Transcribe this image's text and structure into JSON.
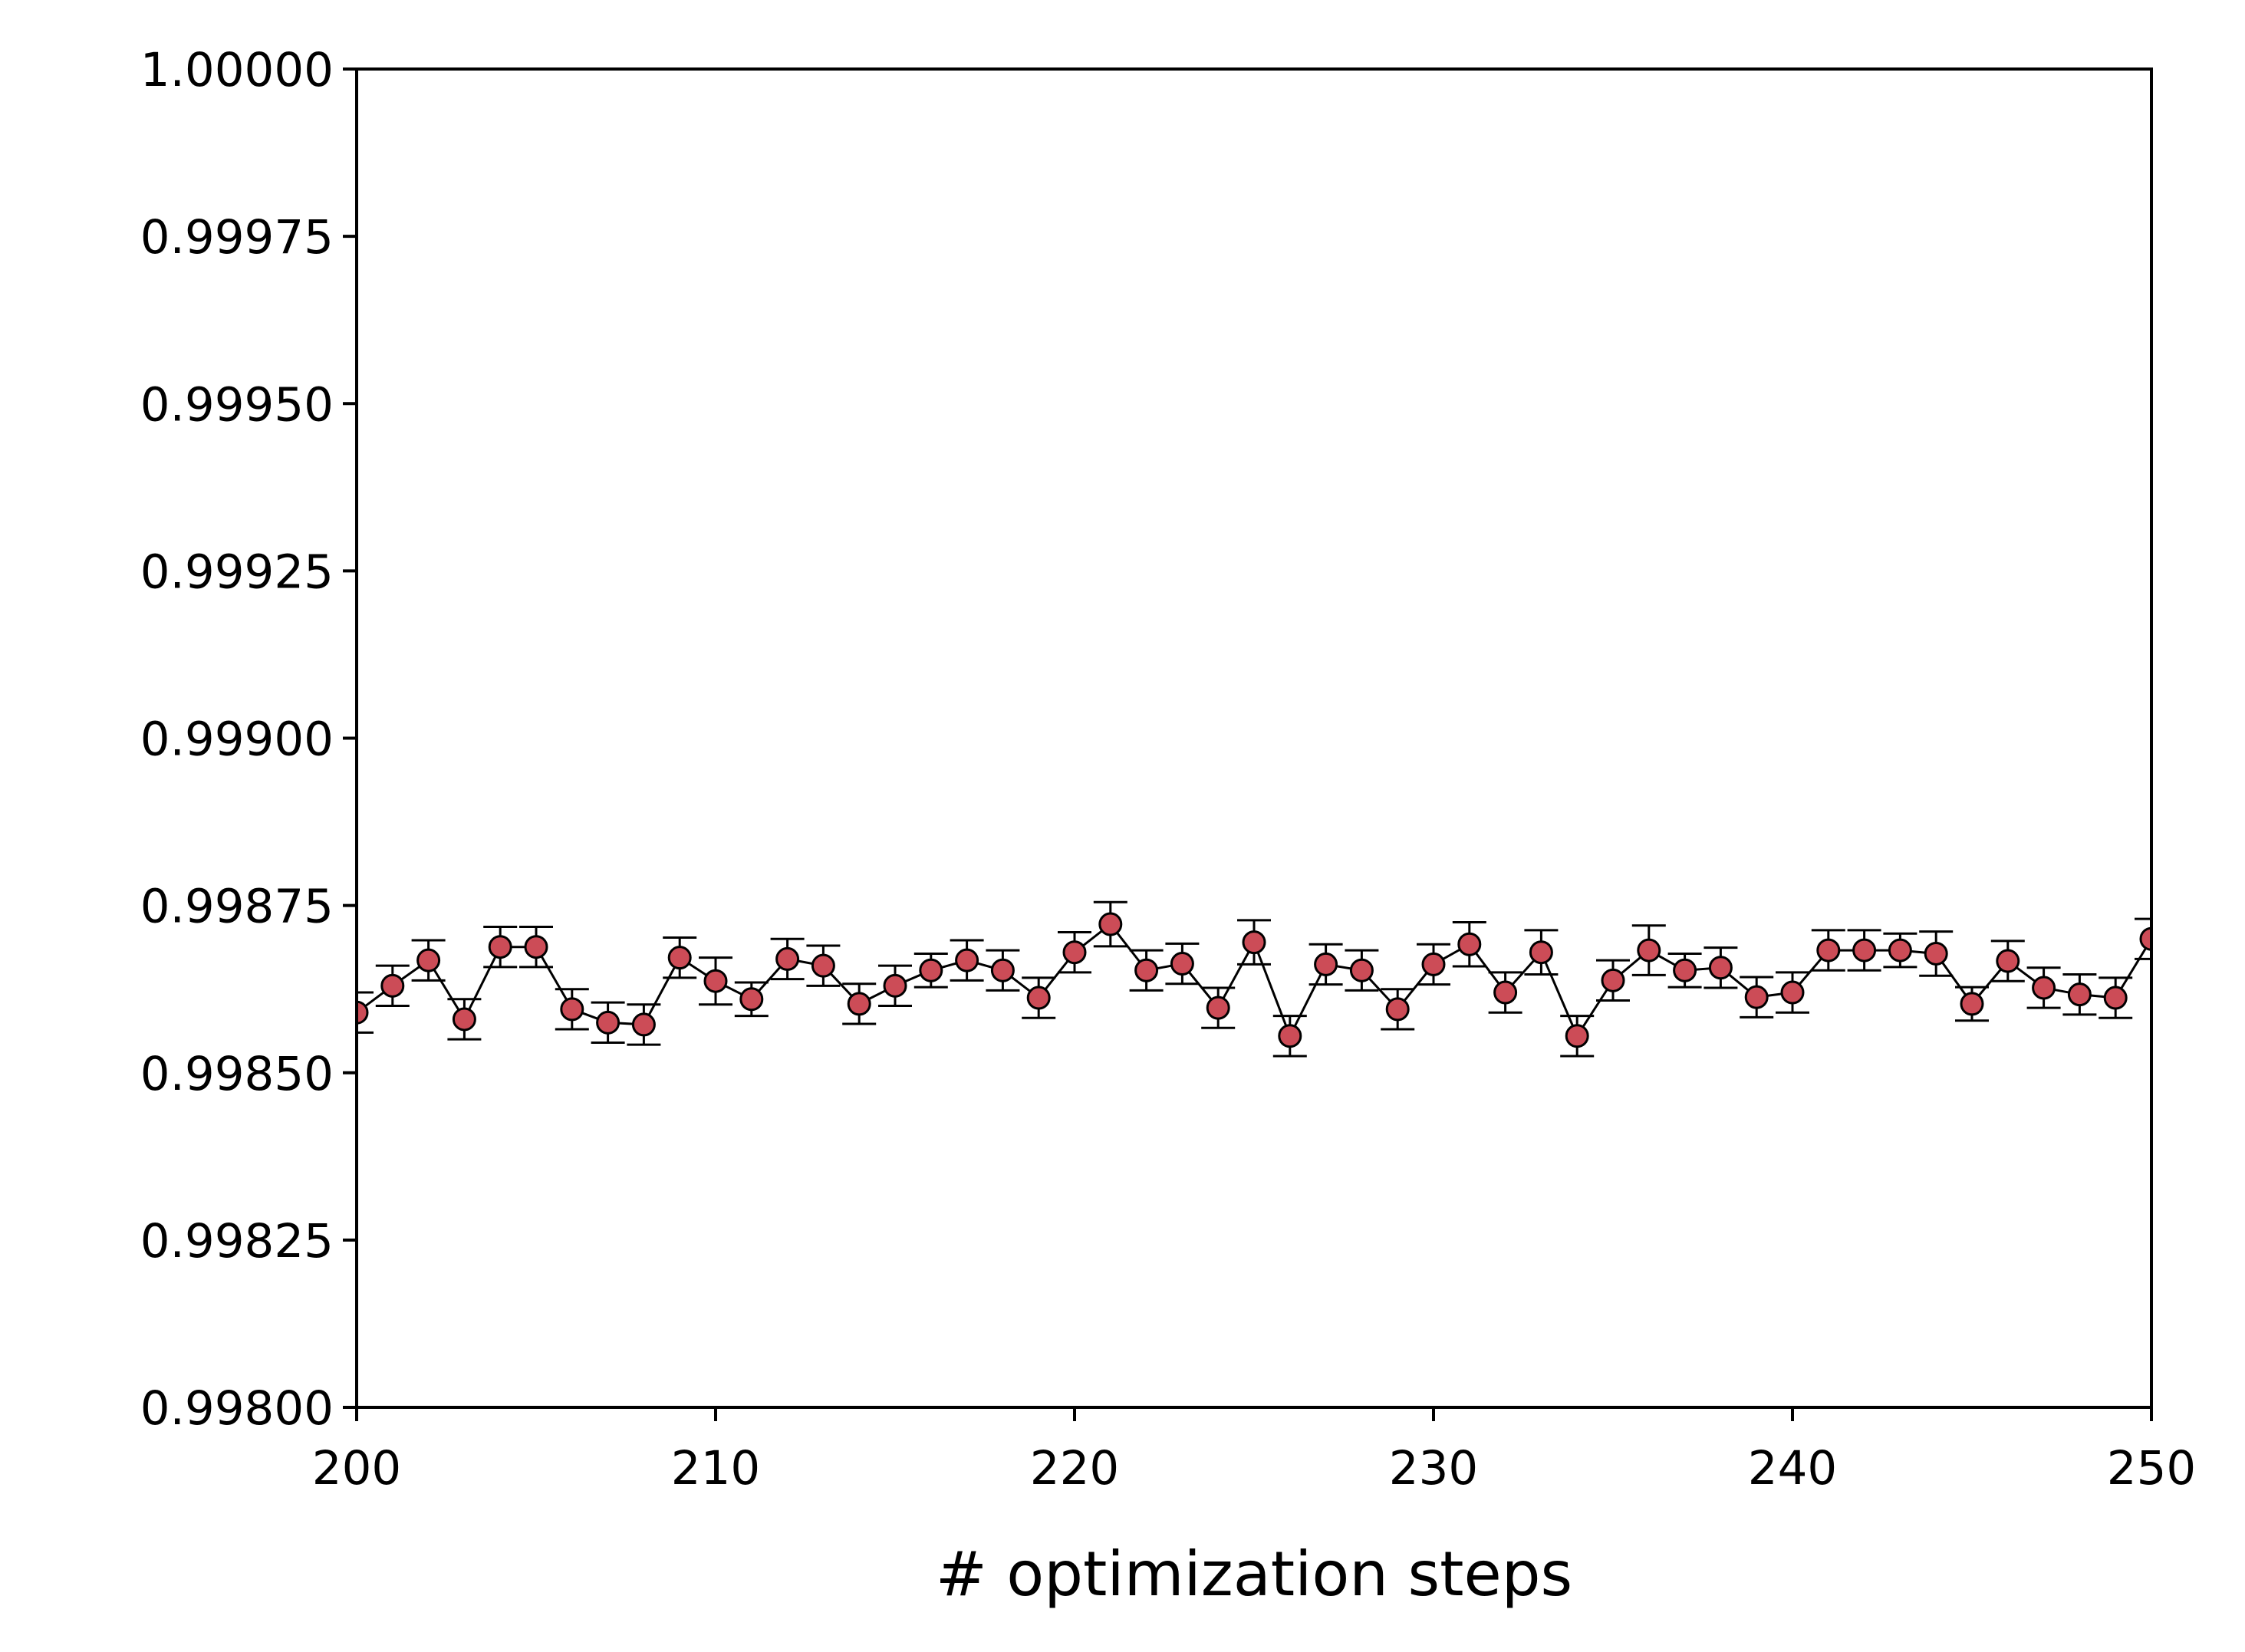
{
  "chart_data": {
    "type": "line",
    "xlabel": "# optimization steps",
    "ylabel": "",
    "xlim": [
      200,
      250
    ],
    "ylim": [
      0.998,
      1.0
    ],
    "x_ticks": [
      "200",
      "210",
      "220",
      "230",
      "240",
      "250"
    ],
    "y_ticks": [
      "0.99800",
      "0.99825",
      "0.99850",
      "0.99875",
      "0.99900",
      "0.99925",
      "0.99950",
      "0.99975",
      "1.00000"
    ],
    "grid": false,
    "legend": "none",
    "marker_color": "#cc4c57",
    "line_color": "#000000",
    "series": [
      {
        "x": [
          200,
          201,
          202,
          203,
          204,
          205,
          206,
          207,
          208,
          209,
          210,
          211,
          212,
          213,
          214,
          215,
          216,
          217,
          218,
          219,
          220,
          221,
          222,
          223,
          224,
          225,
          226,
          227,
          228,
          229,
          230,
          231,
          232,
          233,
          234,
          235,
          236,
          237,
          238,
          239,
          240,
          241,
          242,
          243,
          244,
          245,
          246,
          247,
          248,
          249,
          250
        ],
        "y": [
          0.99859,
          0.99863,
          0.998668,
          0.99858,
          0.998688,
          0.998688,
          0.998595,
          0.998575,
          0.998572,
          0.998672,
          0.998637,
          0.99861,
          0.99867,
          0.99866,
          0.998603,
          0.99863,
          0.998653,
          0.998668,
          0.998653,
          0.998612,
          0.99868,
          0.998722,
          0.998653,
          0.998663,
          0.998597,
          0.998695,
          0.998555,
          0.998662,
          0.998653,
          0.998595,
          0.998662,
          0.998692,
          0.99862,
          0.99868,
          0.998555,
          0.998638,
          0.998683,
          0.998653,
          0.998657,
          0.998613,
          0.99862,
          0.998683,
          0.998683,
          0.998683,
          0.998678,
          0.998603,
          0.998667,
          0.998627,
          0.998617,
          0.998612,
          0.9987
        ],
        "error": [
          3e-05,
          3e-05,
          3e-05,
          3e-05,
          3e-05,
          3e-05,
          3e-05,
          3e-05,
          3e-05,
          3e-05,
          3.5e-05,
          2.5e-05,
          3e-05,
          3e-05,
          3e-05,
          3e-05,
          2.5e-05,
          3e-05,
          3e-05,
          3e-05,
          3e-05,
          3.3e-05,
          3e-05,
          3e-05,
          3e-05,
          3.3e-05,
          3e-05,
          3e-05,
          3e-05,
          3e-05,
          3e-05,
          3.3e-05,
          3e-05,
          3.3e-05,
          3e-05,
          3e-05,
          3.7e-05,
          2.5e-05,
          3e-05,
          3e-05,
          3e-05,
          3e-05,
          3e-05,
          2.5e-05,
          3.3e-05,
          2.5e-05,
          3e-05,
          3e-05,
          3e-05,
          3e-05,
          3e-05
        ]
      }
    ]
  }
}
